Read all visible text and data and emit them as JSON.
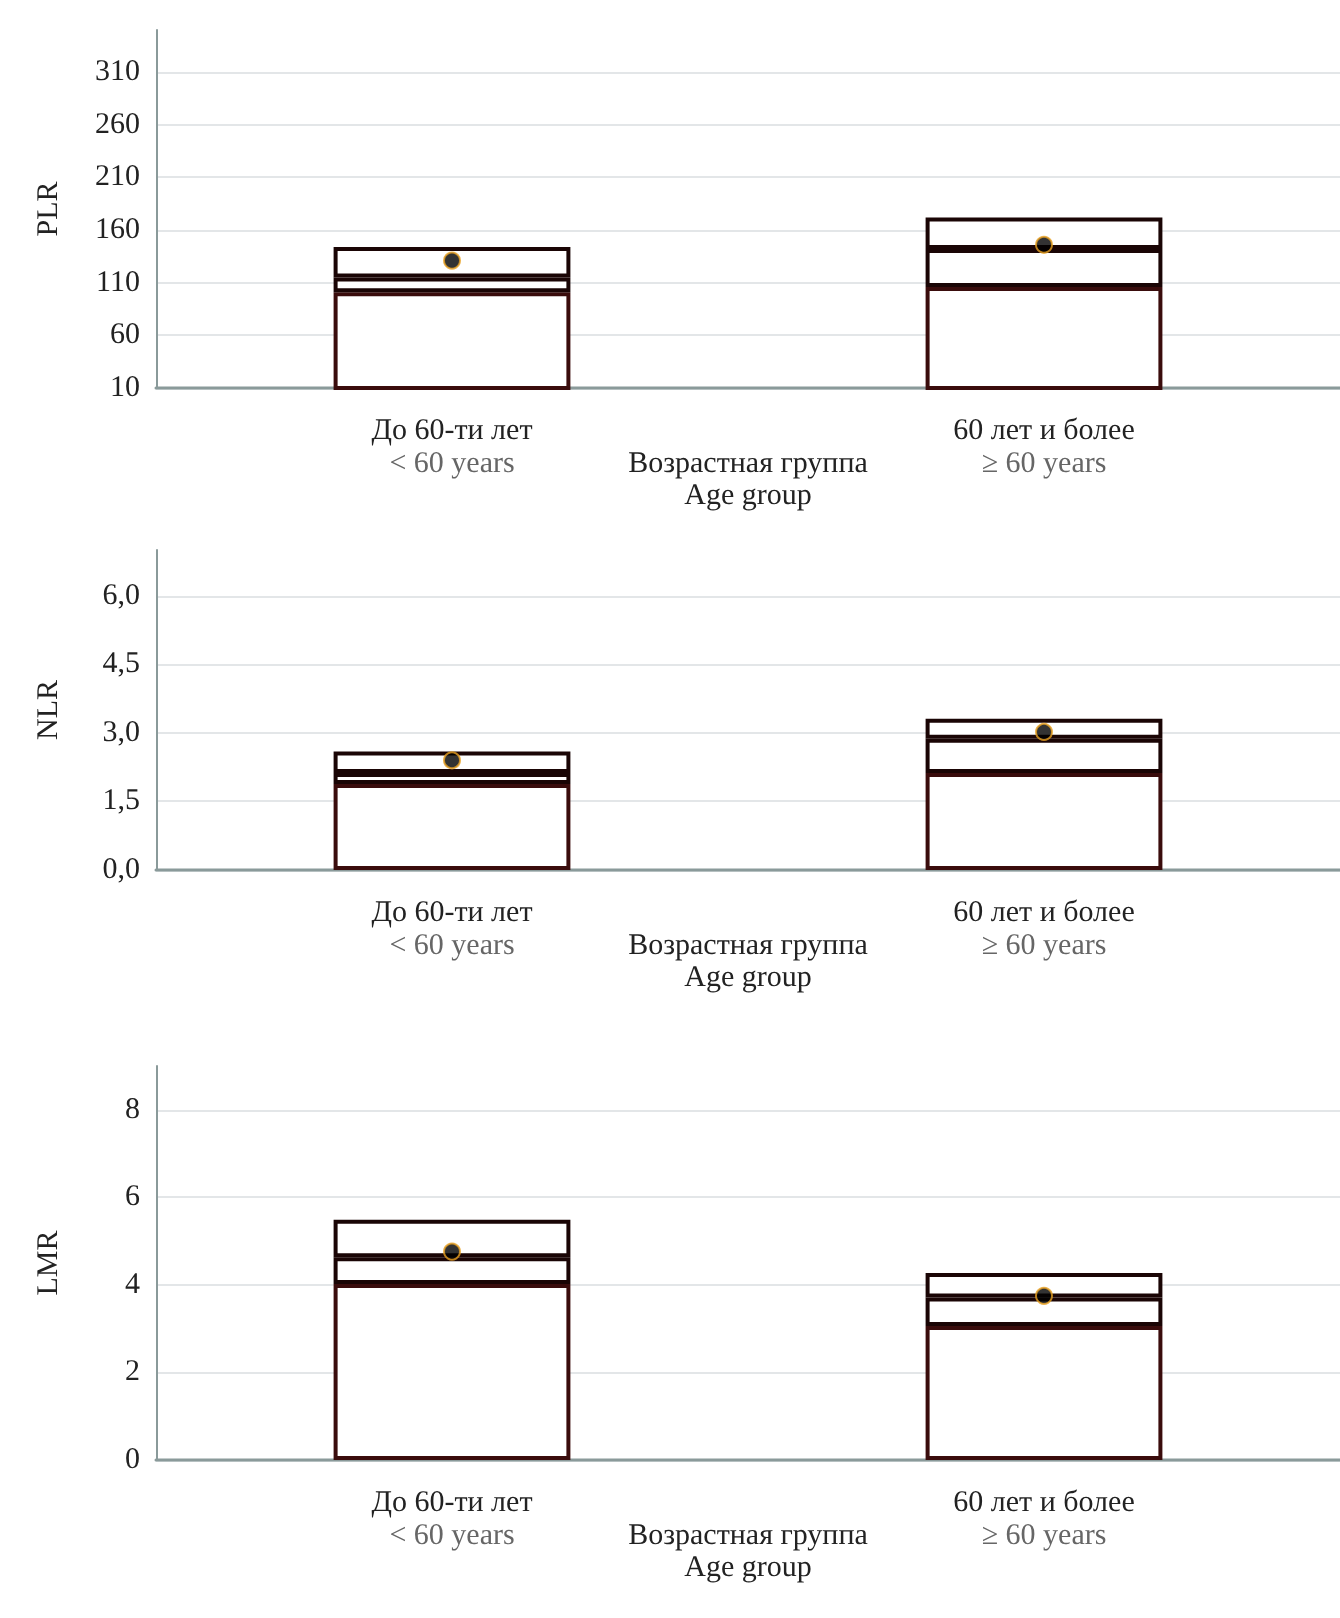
{
  "chart_data": [
    {
      "type": "bar",
      "stacked": true,
      "ylabel": "PLR",
      "xlabel": "Возрастная группа\nAge group",
      "categories": [
        "До 60-ти лет",
        "60 лет и более"
      ],
      "annotations": [
        "< 60 years",
        "≥ 60 years"
      ],
      "ylim": [
        10,
        350
      ],
      "yticks": [
        10,
        60,
        110,
        160,
        210,
        260,
        310
      ],
      "grid": "y",
      "series": [
        {
          "color": "#3a0c0c",
          "values": [
            101,
            106
          ]
        },
        {
          "color": "#1a0505",
          "values": [
            14,
            36
          ]
        },
        {
          "color": "#1a0505",
          "values": [
            29,
            30
          ]
        },
        {
          "type": "scatter",
          "color": "#000000",
          "marker": "circle",
          "x": [
            "До 60-ти лет",
            "60 лет и более"
          ],
          "values": [
            131,
            146
          ]
        }
      ]
    },
    {
      "type": "bar",
      "stacked": true,
      "ylabel": "NLR",
      "xlabel": "Возрастная группа\nAge group",
      "categories": [
        "До 60-ти лет",
        "60 лет и более"
      ],
      "annotations": [
        "< 60 years",
        "≥ 60 years"
      ],
      "ylim": [
        0,
        7
      ],
      "yticks": [
        {
          "value": 0,
          "label": "0,0"
        },
        {
          "value": 1.5,
          "label": "1,5"
        },
        {
          "value": 3,
          "label": "3,0"
        },
        {
          "value": 4.5,
          "label": "4,5"
        },
        {
          "value": 6,
          "label": "6,0"
        }
      ],
      "grid": "y",
      "series": [
        {
          "color": "#3a0c0c",
          "values": [
            1.88,
            2.12
          ]
        },
        {
          "color": "#1a0505",
          "values": [
            0.24,
            0.75
          ]
        },
        {
          "color": "#1a0505",
          "values": [
            0.47,
            0.44
          ]
        },
        {
          "type": "scatter",
          "color": "#000000",
          "marker": "circle",
          "x": [
            "До 60-ти лет",
            "60 лет и более"
          ],
          "values": [
            2.4,
            3.02
          ]
        }
      ]
    },
    {
      "type": "bar",
      "stacked": true,
      "ylabel": "LMR",
      "xlabel": "Возрастная группа\nAge group",
      "categories": [
        "До 60-ти лет",
        "60 лет и более"
      ],
      "annotations": [
        "< 60 years",
        "≥ 60 years"
      ],
      "ylim": [
        0,
        9
      ],
      "yticks": [
        0,
        2,
        4,
        6,
        8
      ],
      "grid": "y",
      "series": [
        {
          "color": "#3a0c0c",
          "values": [
            4.02,
            3.06
          ]
        },
        {
          "color": "#1a0505",
          "values": [
            0.61,
            0.65
          ]
        },
        {
          "color": "#1a0505",
          "values": [
            0.86,
            0.56
          ]
        },
        {
          "type": "scatter",
          "color": "#000000",
          "marker": "circle",
          "x": [
            "До 60-ти лет",
            "60 лет и более"
          ],
          "values": [
            4.76,
            3.75
          ]
        }
      ]
    }
  ]
}
